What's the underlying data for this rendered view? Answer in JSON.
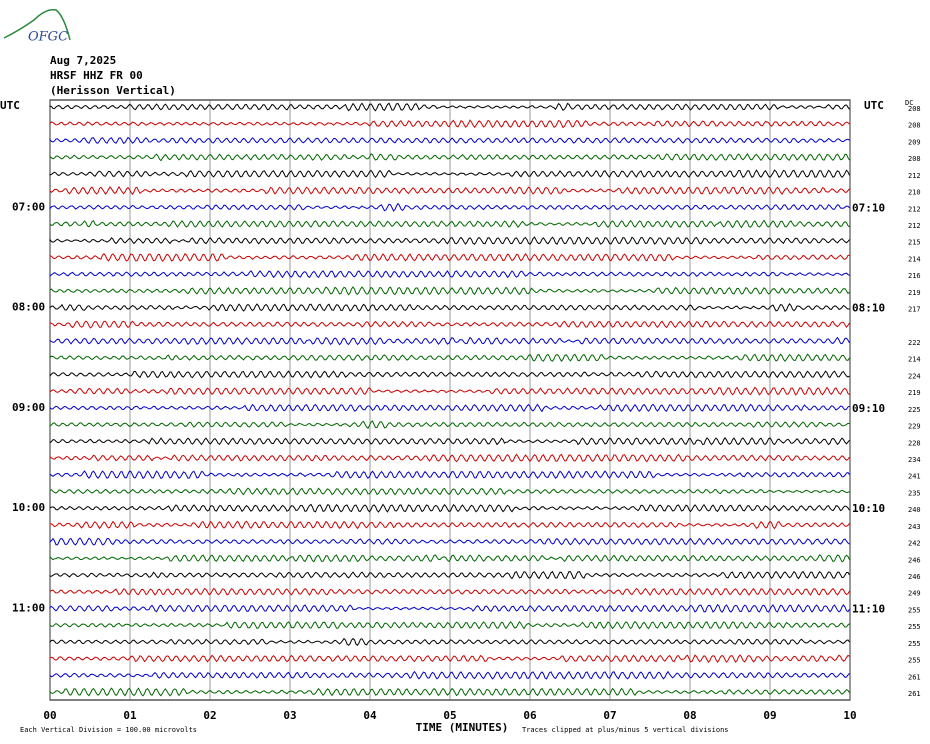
{
  "logo": "OFGC",
  "header": {
    "date": "Aug 7,2025",
    "station": "HRSF HHZ FR 00",
    "channel": "(Herisson Vertical)"
  },
  "utc_left": "UTC",
  "utc_right": "UTC",
  "dc_title": "DC",
  "left_labels": [
    null,
    null,
    null,
    null,
    null,
    null,
    "07:00",
    null,
    null,
    null,
    null,
    null,
    "08:00",
    null,
    null,
    null,
    null,
    null,
    "09:00",
    null,
    null,
    null,
    null,
    null,
    "10:00",
    null,
    null,
    null,
    null,
    null,
    "11:00",
    null,
    null,
    null,
    null,
    null
  ],
  "right_labels": [
    null,
    null,
    null,
    null,
    null,
    null,
    "07:10",
    null,
    null,
    null,
    null,
    null,
    "08:10",
    null,
    null,
    null,
    null,
    null,
    "09:10",
    null,
    null,
    null,
    null,
    null,
    "10:10",
    null,
    null,
    null,
    null,
    null,
    "11:10",
    null,
    null,
    null,
    null,
    null
  ],
  "dc": [
    208,
    208,
    209,
    208,
    212,
    210,
    212,
    212,
    215,
    214,
    216,
    219,
    217,
    null,
    222,
    214,
    224,
    219,
    225,
    229,
    228,
    234,
    241,
    235,
    240,
    243,
    242,
    246,
    246,
    249,
    255,
    255,
    255,
    255,
    261,
    261
  ],
  "colors": [
    "#000000",
    "#cc0000",
    "#0000cc",
    "#006600"
  ],
  "xticks": [
    {
      "value": 0,
      "label": "00"
    },
    {
      "value": 1,
      "label": "01"
    },
    {
      "value": 2,
      "label": "02"
    },
    {
      "value": 3,
      "label": "03"
    },
    {
      "value": 4,
      "label": "04"
    },
    {
      "value": 5,
      "label": "05"
    },
    {
      "value": 6,
      "label": "06"
    },
    {
      "value": 7,
      "label": "07"
    },
    {
      "value": 8,
      "label": "08"
    },
    {
      "value": 9,
      "label": "09"
    },
    {
      "value": 10,
      "label": "10"
    }
  ],
  "xlim": [
    0,
    10
  ],
  "xlabel": "TIME (MINUTES)",
  "footer_left": "Each Vertical Division =  100.00 microvolts",
  "footer_right": "Traces clipped at plus/minus 5 vertical divisions"
}
